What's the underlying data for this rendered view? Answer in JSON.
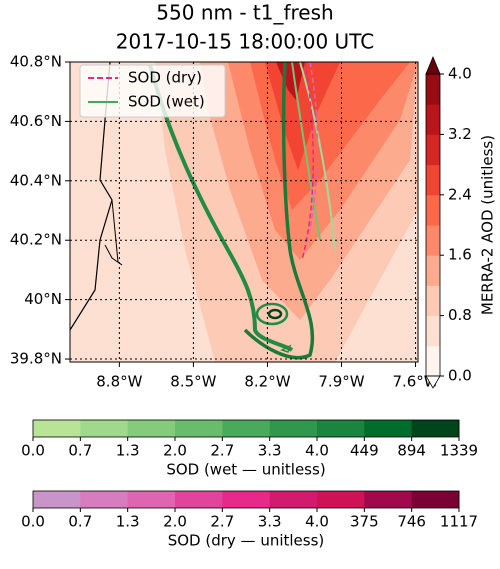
{
  "chart_data": {
    "type": "contour",
    "title": "550 nm - t1_fresh",
    "subtitle": "2017-10-15 18:00:00 UTC",
    "xlim": [
      -9.0,
      -7.59
    ],
    "ylim": [
      39.79,
      40.8
    ],
    "xticks": [
      {
        "value": -8.8,
        "label": "8.8°W"
      },
      {
        "value": -8.5,
        "label": "8.5°W"
      },
      {
        "value": -8.2,
        "label": "8.2°W"
      },
      {
        "value": -7.9,
        "label": "7.9°W"
      },
      {
        "value": -7.6,
        "label": "7.6°W"
      }
    ],
    "yticks": [
      {
        "value": 39.8,
        "label": "39.8°N"
      },
      {
        "value": 40,
        "label": "40°N"
      },
      {
        "value": 40.2,
        "label": "40.2°N"
      },
      {
        "value": 40.4,
        "label": "40.4°N"
      },
      {
        "value": 40.6,
        "label": "40.6°N"
      },
      {
        "value": 40.8,
        "label": "40.8°N"
      }
    ],
    "grid": true,
    "legend": {
      "location": "upper left",
      "entries": [
        {
          "name": "SOD (dry)",
          "color": "#e7298a",
          "style": "dashed"
        },
        {
          "name": "SOD (wet)",
          "color": "#41ab5d",
          "style": "solid"
        }
      ]
    },
    "colorbars": [
      {
        "orientation": "vertical",
        "label": "MERRA-2 AOD (unitless)",
        "lim": [
          0,
          4
        ],
        "ticks": [
          {
            "value": 0,
            "label": "0.0"
          },
          0.8,
          1.6,
          2.4,
          3.2,
          {
            "value": 4,
            "label": "4.0"
          }
        ],
        "colors": [
          "#fff5f0",
          "#fee0d2",
          "#fdcab5",
          "#fcab8f",
          "#fc8a6a",
          "#fb694a",
          "#f14432",
          "#d92523",
          "#bc141a",
          "#980c13"
        ],
        "over_color": "#67000d",
        "under_color": "#ffffff"
      },
      {
        "orientation": "horizontal",
        "label": "SOD (wet — unitless)",
        "ticks": [
          {
            "value": 0,
            "label": "0.0"
          },
          {
            "value": 0.7,
            "label": "0.7"
          },
          {
            "value": 1.3,
            "label": "1.3"
          },
          {
            "value": 2,
            "label": "2.0"
          },
          {
            "value": 2.7,
            "label": "2.7"
          },
          {
            "value": 3.3,
            "label": "3.3"
          },
          {
            "value": 4,
            "label": "4.0"
          },
          449,
          894,
          1339
        ],
        "colors": [
          "#b9e397",
          "#a0d98b",
          "#84cb7c",
          "#68bc6c",
          "#4aaa5c",
          "#31974c",
          "#1b843f",
          "#006d2c",
          "#00441b"
        ]
      },
      {
        "orientation": "horizontal",
        "label": "SOD (dry — unitless)",
        "ticks": [
          {
            "value": 0,
            "label": "0.0"
          },
          {
            "value": 0.7,
            "label": "0.7"
          },
          {
            "value": 1.3,
            "label": "1.3"
          },
          {
            "value": 2,
            "label": "2.0"
          },
          {
            "value": 2.7,
            "label": "2.7"
          },
          {
            "value": 3.3,
            "label": "3.3"
          },
          {
            "value": 4,
            "label": "4.0"
          },
          375,
          746,
          1117
        ],
        "colors": [
          "#c994c7",
          "#d67cbf",
          "#df65b0",
          "#e0459b",
          "#e7298a",
          "#d11b6f",
          "#ce1256",
          "#a00a4c",
          "#7a0133"
        ]
      }
    ]
  }
}
